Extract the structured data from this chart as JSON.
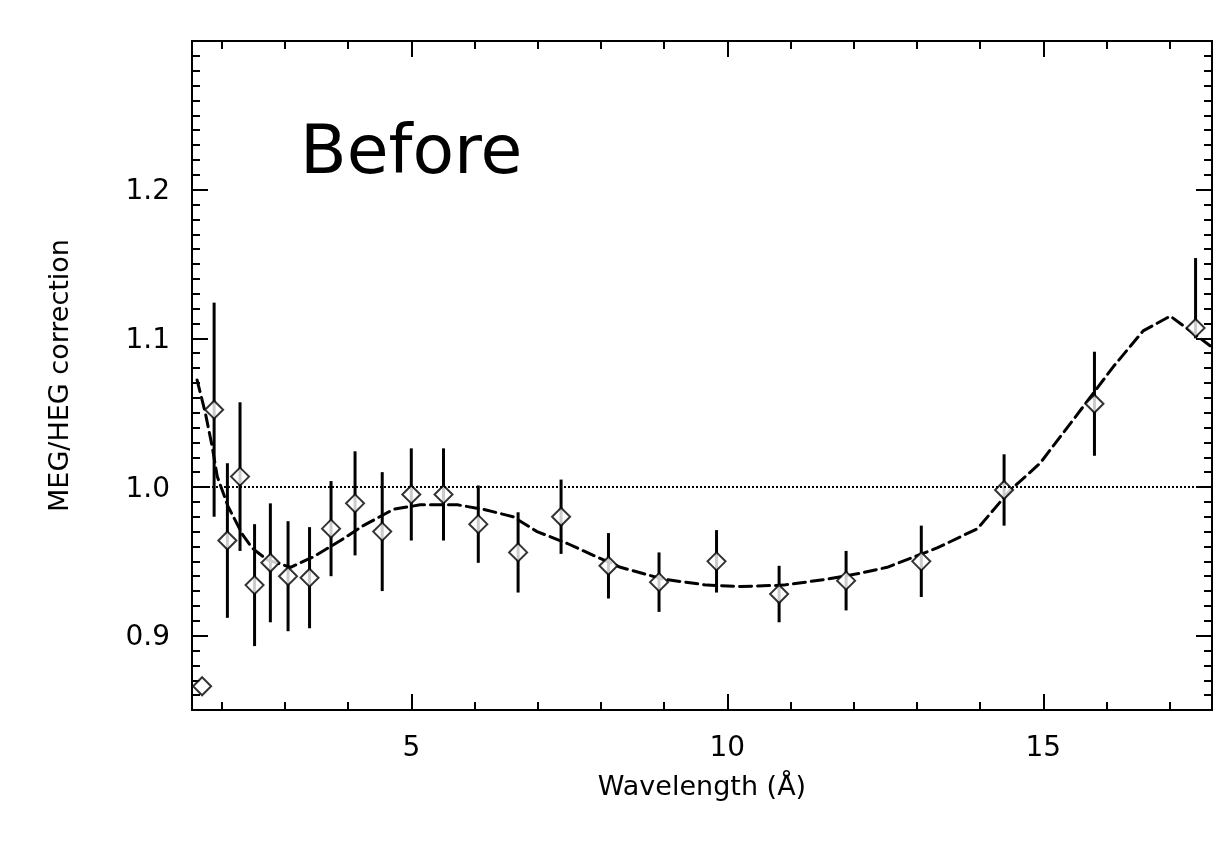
{
  "chart_data": {
    "type": "scatter",
    "xlabel": "Wavelength (Å)",
    "ylabel": "MEG/HEG correction",
    "annotations": [
      "Before"
    ],
    "xlim": [
      1.53,
      17.67
    ],
    "ylim": [
      0.85,
      1.3
    ],
    "xticks": [
      {
        "value": 2,
        "label": null
      },
      {
        "value": 3,
        "label": null
      },
      {
        "value": 4,
        "label": null
      },
      5,
      {
        "value": 6,
        "label": null
      },
      {
        "value": 7,
        "label": null
      },
      {
        "value": 8,
        "label": null
      },
      {
        "value": 9,
        "label": null
      },
      10,
      {
        "value": 11,
        "label": null
      },
      {
        "value": 12,
        "label": null
      },
      {
        "value": 13,
        "label": null
      },
      {
        "value": 14,
        "label": null
      },
      15,
      {
        "value": 16,
        "label": null
      },
      {
        "value": 17,
        "label": null
      }
    ],
    "yticks": [
      {
        "value": 0.86,
        "label": null
      },
      {
        "value": 0.87,
        "label": null
      },
      {
        "value": 0.88,
        "label": null
      },
      {
        "value": 0.89,
        "label": null
      },
      {
        "value": 0.9,
        "label": "0.9"
      },
      {
        "value": 0.91,
        "label": null
      },
      {
        "value": 0.92,
        "label": null
      },
      {
        "value": 0.93,
        "label": null
      },
      {
        "value": 0.94,
        "label": null
      },
      {
        "value": 0.95,
        "label": null
      },
      {
        "value": 0.96,
        "label": null
      },
      {
        "value": 0.97,
        "label": null
      },
      {
        "value": 0.98,
        "label": null
      },
      {
        "value": 0.99,
        "label": null
      },
      {
        "value": 1.0,
        "label": "1.0"
      },
      {
        "value": 1.01,
        "label": null
      },
      {
        "value": 1.02,
        "label": null
      },
      {
        "value": 1.03,
        "label": null
      },
      {
        "value": 1.04,
        "label": null
      },
      {
        "value": 1.05,
        "label": null
      },
      {
        "value": 1.06,
        "label": null
      },
      {
        "value": 1.07,
        "label": null
      },
      {
        "value": 1.08,
        "label": null
      },
      {
        "value": 1.09,
        "label": null
      },
      {
        "value": 1.1,
        "label": "1.1"
      },
      {
        "value": 1.11,
        "label": null
      },
      {
        "value": 1.12,
        "label": null
      },
      {
        "value": 1.13,
        "label": null
      },
      {
        "value": 1.14,
        "label": null
      },
      {
        "value": 1.15,
        "label": null
      },
      {
        "value": 1.16,
        "label": null
      },
      {
        "value": 1.17,
        "label": null
      },
      {
        "value": 1.18,
        "label": null
      },
      {
        "value": 1.19,
        "label": null
      },
      {
        "value": 1.2,
        "label": "1.2"
      },
      {
        "value": 1.21,
        "label": null
      },
      {
        "value": 1.22,
        "label": null
      },
      {
        "value": 1.23,
        "label": null
      },
      {
        "value": 1.24,
        "label": null
      },
      {
        "value": 1.25,
        "label": null
      },
      {
        "value": 1.26,
        "label": null
      },
      {
        "value": 1.27,
        "label": null
      },
      {
        "value": 1.28,
        "label": null
      },
      {
        "value": 1.29,
        "label": null
      }
    ],
    "grid": false,
    "ref_lines": [
      {
        "axis": "y",
        "value": 1.0,
        "color": "#000000",
        "line_style": "dotted"
      }
    ],
    "series": [
      {
        "type": "scatter",
        "color": "#000000",
        "marker": "diamond",
        "x": [
          1.69,
          1.88,
          2.09,
          2.29,
          2.52,
          2.77,
          3.05,
          3.39,
          3.73,
          4.11,
          4.54,
          5.0,
          5.51,
          6.06,
          6.69,
          7.37,
          8.12,
          8.92,
          9.83,
          10.82,
          11.88,
          13.07,
          14.38,
          15.81,
          17.41
        ],
        "values": [
          0.866,
          1.052,
          0.964,
          1.007,
          0.934,
          0.949,
          0.94,
          0.939,
          0.972,
          0.989,
          0.97,
          0.995,
          0.995,
          0.975,
          0.956,
          0.98,
          0.947,
          0.936,
          0.95,
          0.928,
          0.937,
          0.95,
          0.998,
          1.056,
          1.107
        ],
        "errors": [
          null,
          [
            0.98,
            1.124
          ],
          0.052,
          0.05,
          0.041,
          0.04,
          0.037,
          0.034,
          0.032,
          0.035,
          0.04,
          0.031,
          0.031,
          0.026,
          0.027,
          0.025,
          0.022,
          0.02,
          0.021,
          0.019,
          0.02,
          0.024,
          0.024,
          0.035,
          [
            1.1,
            1.154
          ]
        ]
      },
      {
        "type": "line",
        "color": "#000000",
        "marker": "none",
        "line_style": "dashed",
        "x": [
          1.61,
          1.74,
          1.85,
          1.93,
          2.1,
          2.33,
          2.48,
          2.72,
          3.09,
          3.45,
          3.88,
          4.24,
          4.72,
          5.14,
          5.73,
          6.14,
          6.61,
          6.99,
          7.47,
          7.88,
          8.31,
          8.99,
          9.68,
          10.21,
          10.89,
          11.58,
          12.1,
          12.53,
          13.32,
          13.96,
          14.48,
          14.95,
          15.47,
          16.11,
          16.58,
          17.01,
          17.64
        ],
        "values": [
          1.072,
          1.05,
          1.027,
          1.007,
          0.987,
          0.968,
          0.959,
          0.951,
          0.946,
          0.953,
          0.964,
          0.974,
          0.985,
          0.988,
          0.988,
          0.985,
          0.98,
          0.97,
          0.962,
          0.954,
          0.946,
          0.938,
          0.934,
          0.933,
          0.934,
          0.938,
          0.942,
          0.946,
          0.959,
          0.972,
          0.998,
          1.016,
          1.045,
          1.081,
          1.105,
          1.115,
          1.095
        ]
      }
    ]
  }
}
